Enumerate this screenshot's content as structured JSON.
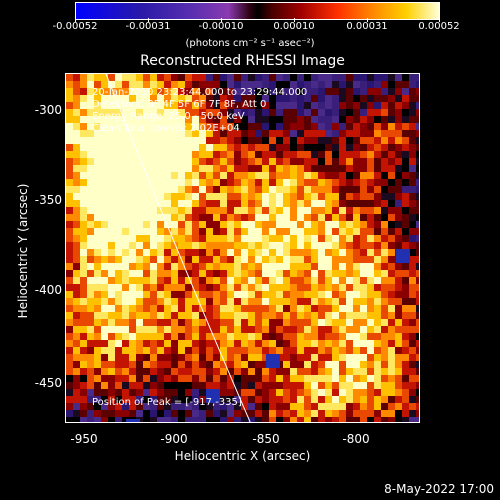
{
  "colorbar": {
    "ticks": [
      "-0.00052",
      "-0.00031",
      "-0.00010",
      "0.00010",
      "0.00031",
      "0.00052"
    ],
    "units": "(photons cm⁻² s⁻¹ asec⁻²)"
  },
  "plot": {
    "title": "Reconstructed RHESSI Image",
    "info": {
      "time": "20-Jan-2010 23:23:44.000 to 23:29:44.000",
      "detectors": "Detectors: 3F 4F 5F 6F 7F 8F, Att 0",
      "energy": "Energy Range: 25.0 - 50.0 keV",
      "clean": "Clean   Total counts: 2.02E+04",
      "peak": "Position of Peak = [-917,-335]"
    },
    "x_axis": {
      "label": "Heliocentric X (arcsec)",
      "ticks": [
        "-950",
        "-900",
        "-850",
        "-800"
      ]
    },
    "y_axis": {
      "label": "Heliocentric Y (arcsec)",
      "ticks": [
        "-300",
        "-350",
        "-400",
        "-450"
      ]
    }
  },
  "footer": {
    "date": "8-May-2022 17:00"
  }
}
